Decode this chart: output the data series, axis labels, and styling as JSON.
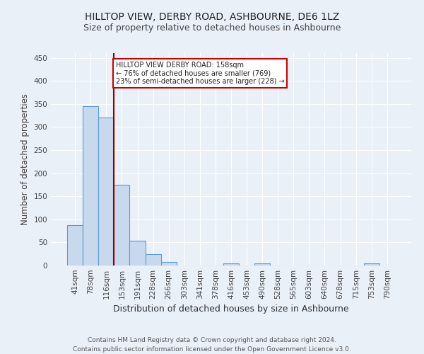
{
  "title": "HILLTOP VIEW, DERBY ROAD, ASHBOURNE, DE6 1LZ",
  "subtitle": "Size of property relative to detached houses in Ashbourne",
  "xlabel": "Distribution of detached houses by size in Ashbourne",
  "ylabel": "Number of detached properties",
  "categories": [
    "41sqm",
    "78sqm",
    "116sqm",
    "153sqm",
    "191sqm",
    "228sqm",
    "266sqm",
    "303sqm",
    "341sqm",
    "378sqm",
    "416sqm",
    "453sqm",
    "490sqm",
    "528sqm",
    "565sqm",
    "603sqm",
    "640sqm",
    "678sqm",
    "715sqm",
    "753sqm",
    "790sqm"
  ],
  "values": [
    88,
    345,
    320,
    175,
    53,
    25,
    8,
    0,
    0,
    0,
    4,
    0,
    5,
    0,
    0,
    0,
    0,
    0,
    0,
    4,
    0
  ],
  "bar_color": "#c8d9ed",
  "bar_edge_color": "#5b9bd5",
  "marker_line_color": "#8B0000",
  "annotation_text": "HILLTOP VIEW DERBY ROAD: 158sqm\n← 76% of detached houses are smaller (769)\n23% of semi-detached houses are larger (228) →",
  "annotation_box_color": "white",
  "annotation_box_edge_color": "#cc0000",
  "ylim": [
    0,
    460
  ],
  "yticks": [
    0,
    50,
    100,
    150,
    200,
    250,
    300,
    350,
    400,
    450
  ],
  "background_color": "#eaf0f8",
  "plot_bg_color": "#eaf0f8",
  "footer": "Contains HM Land Registry data © Crown copyright and database right 2024.\nContains public sector information licensed under the Open Government Licence v3.0.",
  "title_fontsize": 10,
  "subtitle_fontsize": 9,
  "xlabel_fontsize": 9,
  "ylabel_fontsize": 8.5,
  "tick_fontsize": 7.5,
  "footer_fontsize": 6.5
}
